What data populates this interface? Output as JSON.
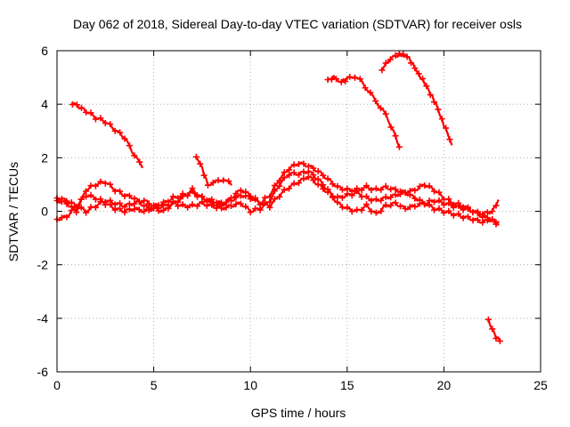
{
  "chart_data": {
    "type": "scatter",
    "title": "Day 062 of 2018, Sidereal Day-to-day VTEC variation (SDTVAR) for receiver osls",
    "xlabel": "GPS time / hours",
    "ylabel": "SDTVAR / TECUs",
    "xlim": [
      0,
      25
    ],
    "ylim": [
      -6,
      6
    ],
    "xticks": [
      0,
      5,
      10,
      15,
      20,
      25
    ],
    "yticks": [
      -6,
      -4,
      -2,
      0,
      2,
      4,
      6
    ],
    "grid": true,
    "legend": "none",
    "marker": "+",
    "color": "#ff0000",
    "series": [
      {
        "name": "s1",
        "x": [
          0.0,
          0.5,
          1.0,
          1.5,
          2.0,
          2.5,
          3.0,
          3.5,
          4.0,
          4.5,
          5.0,
          5.5,
          6.0,
          6.5,
          7.0,
          7.5,
          8.0,
          8.5,
          9.0,
          9.5,
          10.0,
          10.5,
          11.0,
          11.5,
          12.0,
          12.5,
          13.0,
          13.5,
          14.0,
          14.5,
          15.0,
          15.5,
          16.0,
          16.5,
          17.0,
          17.5,
          18.0,
          18.5,
          19.0,
          19.5,
          20.0,
          20.5,
          21.0,
          21.5,
          22.0,
          22.5,
          22.8
        ],
        "y": [
          0.5,
          0.4,
          0.2,
          0.0,
          0.2,
          0.4,
          0.3,
          0.2,
          0.3,
          0.4,
          0.2,
          0.3,
          0.5,
          0.6,
          0.7,
          0.5,
          0.4,
          0.3,
          0.4,
          0.6,
          0.5,
          0.3,
          0.6,
          1.2,
          1.6,
          1.8,
          1.7,
          1.5,
          1.2,
          0.9,
          0.8,
          0.8,
          0.9,
          0.8,
          0.9,
          0.8,
          0.7,
          0.8,
          1.0,
          0.8,
          0.5,
          0.3,
          0.2,
          0.0,
          -0.2,
          -0.3,
          -0.4
        ]
      },
      {
        "name": "s2",
        "x": [
          0.0,
          0.5,
          1.0,
          1.5,
          2.0,
          2.5,
          3.0,
          3.5,
          4.0,
          4.5,
          5.0,
          5.5,
          6.0,
          6.5,
          7.0,
          7.5,
          8.0,
          8.5,
          9.0,
          9.5,
          10.0,
          10.5,
          11.0,
          11.5,
          12.0,
          12.5,
          13.0,
          13.5,
          14.0,
          14.5,
          15.0,
          15.5,
          16.0,
          16.5,
          17.0,
          17.5,
          18.0,
          18.5,
          19.0,
          19.5,
          20.0,
          20.5,
          21.0,
          21.5,
          22.0,
          22.5,
          22.8
        ],
        "y": [
          -0.3,
          -0.2,
          0.2,
          0.6,
          0.5,
          0.3,
          0.1,
          0.0,
          0.1,
          0.0,
          0.1,
          0.2,
          0.3,
          0.2,
          0.2,
          0.3,
          0.2,
          0.1,
          0.2,
          0.3,
          0.0,
          0.1,
          0.4,
          1.0,
          1.4,
          1.4,
          1.5,
          1.2,
          0.8,
          0.3,
          0.1,
          0.0,
          0.2,
          -0.1,
          0.2,
          0.3,
          0.1,
          0.2,
          0.3,
          0.1,
          0.0,
          -0.1,
          -0.2,
          -0.3,
          -0.4,
          -0.3,
          -0.5
        ]
      },
      {
        "name": "s3",
        "x": [
          0.0,
          0.5,
          1.0,
          1.5,
          2.0,
          2.5,
          3.0,
          3.5,
          4.0,
          4.5,
          5.0,
          5.5,
          6.0,
          6.5,
          7.0,
          7.5,
          8.0,
          8.5,
          9.0,
          9.5,
          10.0,
          10.5,
          11.0,
          11.5,
          12.0,
          12.5,
          13.0,
          13.5,
          14.0,
          14.5,
          15.0,
          15.5,
          16.0,
          16.5,
          17.0,
          17.5,
          18.0,
          18.5,
          19.0,
          19.5,
          20.0,
          20.5,
          21.0,
          21.5,
          22.0,
          22.5,
          22.8
        ],
        "y": [
          0.4,
          0.3,
          0.0,
          0.8,
          1.0,
          1.1,
          0.8,
          0.6,
          0.5,
          0.2,
          0.1,
          0.0,
          0.3,
          0.5,
          0.8,
          0.5,
          0.3,
          0.2,
          0.5,
          0.8,
          0.6,
          0.3,
          0.2,
          0.6,
          0.9,
          1.1,
          1.3,
          1.0,
          0.7,
          0.5,
          0.6,
          0.7,
          0.5,
          0.4,
          0.5,
          0.6,
          0.7,
          0.5,
          0.3,
          0.4,
          0.3,
          0.2,
          0.1,
          0.0,
          -0.1,
          0.0,
          0.4
        ]
      },
      {
        "name": "s4",
        "x": [
          0.8,
          1.5,
          2.0,
          2.5,
          3.0,
          3.5,
          4.0,
          4.4
        ],
        "y": [
          4.05,
          3.75,
          3.5,
          3.35,
          3.05,
          2.75,
          2.1,
          1.65
        ]
      },
      {
        "name": "s5",
        "x": [
          7.2,
          7.4,
          7.6,
          7.8,
          8.2,
          8.6,
          9.0
        ],
        "y": [
          2.0,
          1.8,
          1.4,
          1.0,
          1.1,
          1.2,
          1.0
        ]
      },
      {
        "name": "s6",
        "x": [
          14.0,
          14.3,
          14.7,
          15.0,
          15.4,
          15.8,
          16.2,
          16.6,
          17.0,
          17.4,
          17.7
        ],
        "y": [
          4.9,
          5.0,
          4.85,
          4.95,
          5.05,
          4.8,
          4.4,
          4.0,
          3.6,
          3.0,
          2.4
        ]
      },
      {
        "name": "s7",
        "x": [
          16.8,
          17.1,
          17.5,
          17.8,
          18.1,
          18.4,
          18.7,
          19.0,
          19.3,
          19.6,
          19.9,
          20.2,
          20.4
        ],
        "y": [
          5.3,
          5.6,
          5.8,
          5.85,
          5.8,
          5.5,
          5.1,
          4.8,
          4.4,
          4.0,
          3.4,
          2.9,
          2.5
        ]
      },
      {
        "name": "s8",
        "x": [
          22.3,
          22.5,
          22.7,
          22.9
        ],
        "y": [
          -4.1,
          -4.4,
          -4.7,
          -4.85
        ]
      }
    ]
  }
}
